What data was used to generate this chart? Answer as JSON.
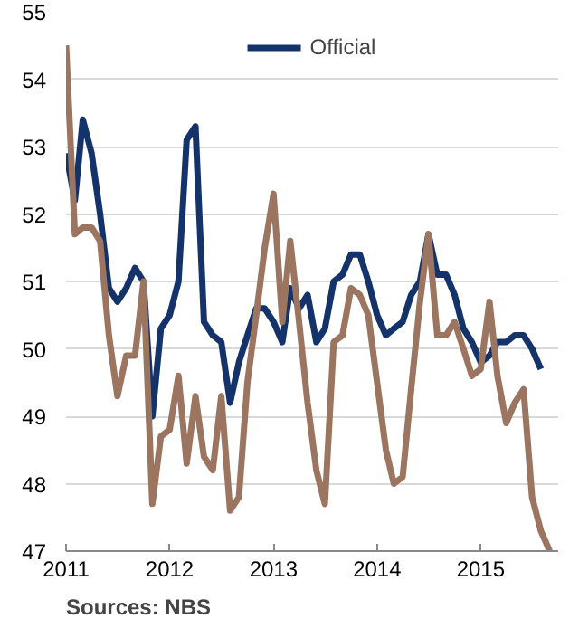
{
  "chart_data": {
    "type": "line",
    "annotations": [
      "Sources: NBS"
    ],
    "x": [
      "2011-01",
      "2011-02",
      "2011-03",
      "2011-04",
      "2011-05",
      "2011-06",
      "2011-07",
      "2011-08",
      "2011-09",
      "2011-10",
      "2011-11",
      "2011-12",
      "2012-01",
      "2012-02",
      "2012-03",
      "2012-04",
      "2012-05",
      "2012-06",
      "2012-07",
      "2012-08",
      "2012-09",
      "2012-10",
      "2012-11",
      "2012-12",
      "2013-01",
      "2013-02",
      "2013-03",
      "2013-04",
      "2013-05",
      "2013-06",
      "2013-07",
      "2013-08",
      "2013-09",
      "2013-10",
      "2013-11",
      "2013-12",
      "2014-01",
      "2014-02",
      "2014-03",
      "2014-04",
      "2014-05",
      "2014-06",
      "2014-07",
      "2014-08",
      "2014-09",
      "2014-10",
      "2014-11",
      "2014-12",
      "2015-01",
      "2015-02",
      "2015-03",
      "2015-04",
      "2015-05",
      "2015-06",
      "2015-07",
      "2015-08",
      "2015-09"
    ],
    "series": [
      {
        "name": "Official",
        "color": "#15336b",
        "values": [
          52.9,
          52.2,
          53.4,
          52.9,
          52.0,
          50.9,
          50.7,
          50.9,
          51.2,
          51.0,
          49.0,
          50.3,
          50.5,
          51.0,
          53.1,
          53.3,
          50.4,
          50.2,
          50.1,
          49.2,
          49.8,
          50.2,
          50.6,
          50.6,
          50.4,
          50.1,
          50.9,
          50.6,
          50.8,
          50.1,
          50.3,
          51.0,
          51.1,
          51.4,
          51.4,
          51.0,
          50.5,
          50.2,
          50.3,
          50.4,
          50.8,
          51.0,
          51.7,
          51.1,
          51.1,
          50.8,
          50.3,
          50.1,
          49.8,
          49.9,
          50.1,
          50.1,
          50.2,
          50.2,
          50.0,
          49.7,
          null
        ]
      },
      {
        "color": "#9c7560",
        "values": [
          54.5,
          51.7,
          51.8,
          51.8,
          51.6,
          50.2,
          49.3,
          49.9,
          49.9,
          51.0,
          47.7,
          48.7,
          48.8,
          49.6,
          48.3,
          49.3,
          48.4,
          48.2,
          49.3,
          47.6,
          47.8,
          49.5,
          50.5,
          51.5,
          52.3,
          50.4,
          51.6,
          50.4,
          49.2,
          48.2,
          47.7,
          50.1,
          50.2,
          50.9,
          50.8,
          50.5,
          49.5,
          48.5,
          48.0,
          48.1,
          49.4,
          50.7,
          51.7,
          50.2,
          50.2,
          50.4,
          50.0,
          49.6,
          49.7,
          50.7,
          49.6,
          48.9,
          49.2,
          49.4,
          47.8,
          47.3,
          47.0
        ]
      }
    ],
    "xlim": [
      "2011-01",
      "2015-10"
    ],
    "xticks": [
      "2011",
      "2012",
      "2013",
      "2014",
      "2015"
    ],
    "ylim": [
      47,
      55
    ],
    "yticks": [
      47,
      48,
      49,
      50,
      51,
      52,
      53,
      54,
      55
    ],
    "grid": "y",
    "legend": "top",
    "line_style": "solid",
    "marker": "none"
  }
}
